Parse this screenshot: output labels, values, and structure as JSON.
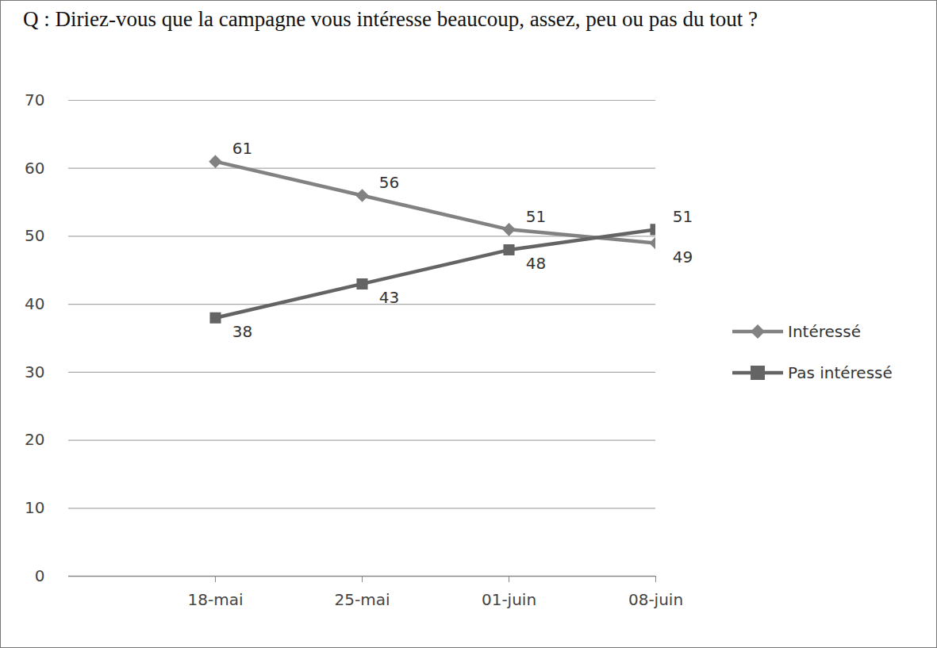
{
  "chart_data": {
    "type": "line",
    "title": "Q : Diriez-vous que la campagne vous intéresse beaucoup, assez, peu ou pas du tout ?",
    "categories": [
      "18-mai",
      "25-mai",
      "01-juin",
      "08-juin"
    ],
    "series": [
      {
        "name": "Intéressé",
        "color": "#828282",
        "marker": "diamond",
        "values": [
          61,
          56,
          51,
          49
        ]
      },
      {
        "name": "Pas intéressé",
        "color": "#646464",
        "marker": "square",
        "values": [
          38,
          43,
          48,
          51
        ]
      }
    ],
    "ylim": [
      0,
      70
    ],
    "yticks": [
      0,
      10,
      20,
      30,
      40,
      50,
      60,
      70
    ],
    "grid": true,
    "data_labels": true,
    "legend": "right"
  }
}
